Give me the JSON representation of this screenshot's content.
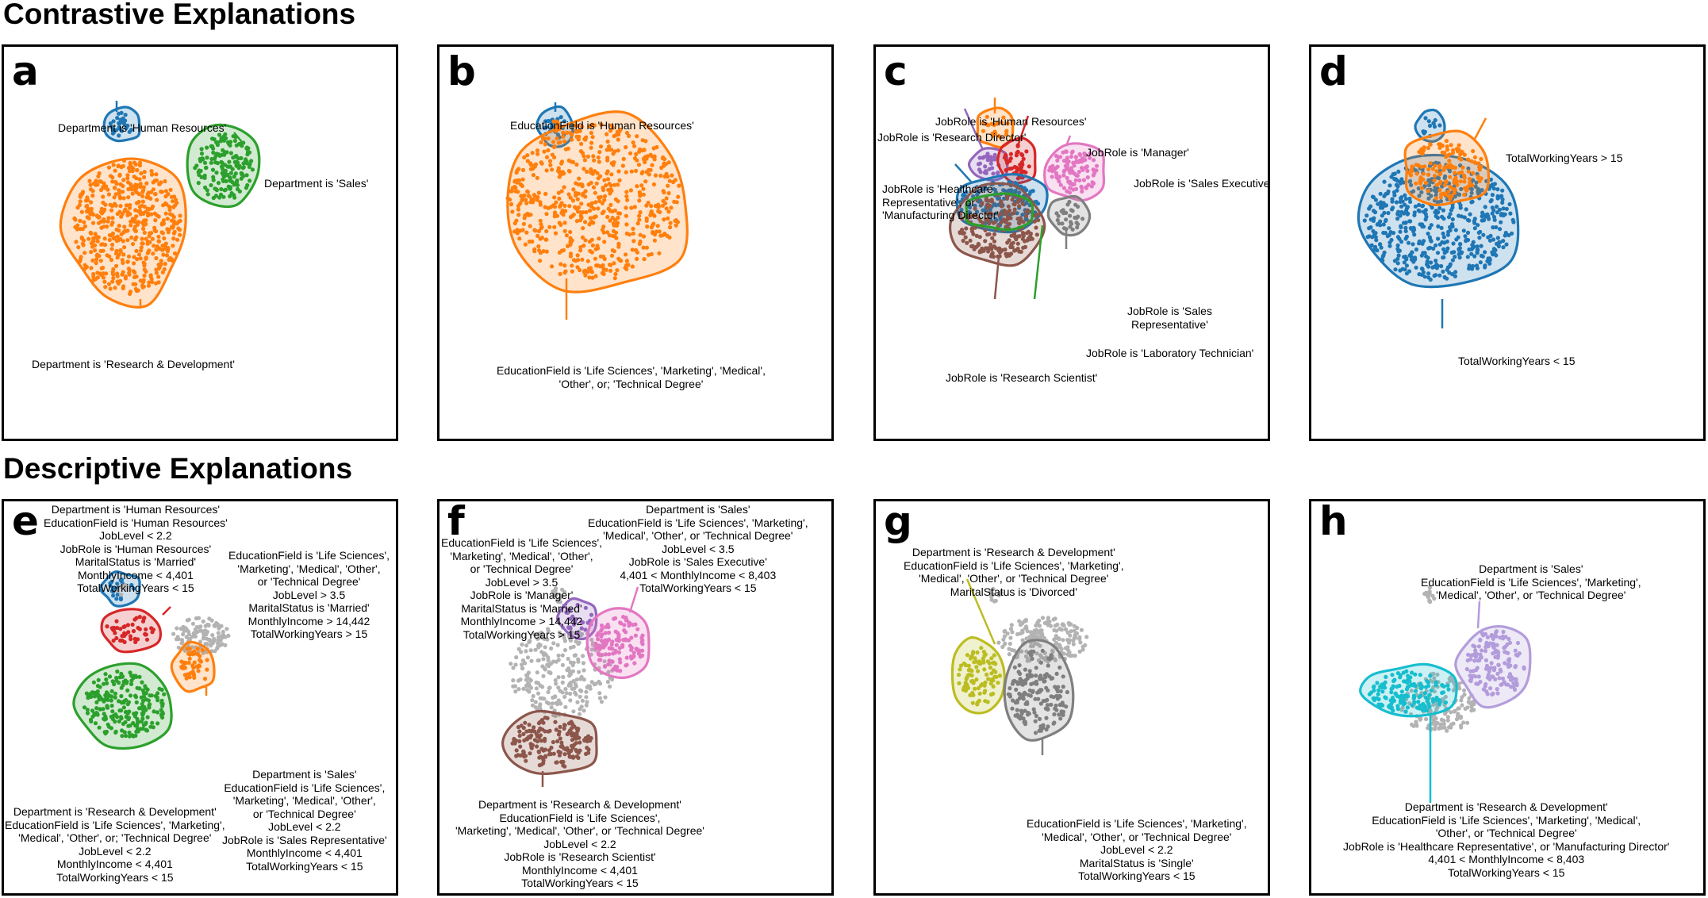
{
  "titles": {
    "contrastive": "Contrastive Explanations",
    "descriptive": "Descriptive Explanations"
  },
  "colors": {
    "blue": "#1f77b4",
    "orange": "#ff7f0e",
    "green": "#2ca02c",
    "red": "#d62728",
    "purple": "#9467bd",
    "brown": "#8c564b",
    "pink": "#e377c2",
    "gray": "#7f7f7f",
    "olive": "#bcbd22",
    "cyan": "#17becf",
    "lavender": "#b39ddb",
    "lightgray": "#b3b3b3"
  },
  "panels": {
    "a": {
      "letter": "a",
      "labels": [
        "Department is 'Human Resources'",
        "Department is 'Sales'",
        "Department is 'Research & Development'"
      ]
    },
    "b": {
      "letter": "b",
      "labels": [
        "EducationField is 'Human Resources'",
        "EducationField is 'Life Sciences', 'Marketing', 'Medical',\n'Other', or; 'Technical Degree'"
      ]
    },
    "c": {
      "letter": "c",
      "labels": [
        "JobRole is 'Human Resources'",
        "JobRole is 'Research Director'",
        "JobRole is 'Manager'",
        "JobRole is 'Sales Executive'",
        "JobRole is 'Healthcare\nRepresentative', or\n'Manufacturing Director'",
        "JobRole is 'Sales\nRepresentative'",
        "JobRole is 'Laboratory Technician'",
        "JobRole is 'Research Scientist'"
      ]
    },
    "d": {
      "letter": "d",
      "labels": [
        "TotalWorkingYears > 15",
        "TotalWorkingYears < 15"
      ]
    },
    "e": {
      "letter": "e",
      "labels": [
        "Department is 'Human Resources'\nEducationField is 'Human Resources'\nJobLevel < 2.2\nJobRole is 'Human Resources'\nMaritalStatus is 'Married'\nMonthlyIncome < 4,401\nTotalWorkingYears < 15",
        "EducationField is 'Life Sciences',\n'Marketing', 'Medical', 'Other',\nor 'Technical Degree'\nJobLevel > 3.5\nMaritalStatus is 'Married'\nMonthlyIncome > 14,442\nTotalWorkingYears > 15",
        "Department is 'Research & Development'\nEducationField is 'Life Sciences', 'Marketing',\n'Medical', 'Other', or; 'Technical Degree'\nJobLevel < 2.2\nMonthlyIncome < 4,401\nTotalWorkingYears < 15",
        "Department is 'Sales'\nEducationField is 'Life Sciences',\n'Marketing', 'Medical', 'Other',\nor 'Technical Degree'\nJobLevel < 2.2\nJobRole is 'Sales Representative'\nMonthlyIncome < 4,401\nTotalWorkingYears < 15"
      ]
    },
    "f": {
      "letter": "f",
      "labels": [
        "Department is 'Sales'\nEducationField is 'Life Sciences', 'Marketing',\n'Medical', 'Other', or 'Technical Degree'\nJobLevel < 3.5\nJobRole is 'Sales Executive'\n4,401 < MonthlyIncome < 8,403\nTotalWorkingYears < 15",
        "EducationField is 'Life Sciences',\n'Marketing', 'Medical', 'Other',\nor 'Technical Degree'\nJobLevel > 3.5\nJobRole is 'Manager'\nMaritalStatus is 'Married'\nMonthlyIncome > 14,442\nTotalWorkingYears > 15",
        "Department is 'Research & Development'\nEducationField is 'Life Sciences',\n'Marketing', 'Medical', 'Other', or 'Technical Degree'\nJobLevel < 2.2\nJobRole is 'Research Scientist'\nMonthlyIncome < 4,401\nTotalWorkingYears < 15"
      ]
    },
    "g": {
      "letter": "g",
      "labels": [
        "Department is 'Research & Development'\nEducationField is 'Life Sciences', 'Marketing',\n'Medical', 'Other', or 'Technical Degree'\nMaritalStatus is 'Divorced'",
        "EducationField is 'Life Sciences', 'Marketing',\n'Medical', 'Other', or 'Technical Degree'\nJobLevel < 2.2\nMaritalStatus is 'Single'\nTotalWorkingYears < 15"
      ]
    },
    "h": {
      "letter": "h",
      "labels": [
        "Department is 'Sales'\nEducationField is 'Life Sciences', 'Marketing',\n'Medical', 'Other', or 'Technical Degree'",
        "Department is 'Research & Development'\nEducationField is 'Life Sciences', 'Marketing', 'Medical',\n'Other', or 'Technical Degree'\nJobRole is 'Healthcare Representative', or 'Manufacturing Director'\n4,401 < MonthlyIncome < 8,403\nTotalWorkingYears < 15"
      ]
    }
  }
}
